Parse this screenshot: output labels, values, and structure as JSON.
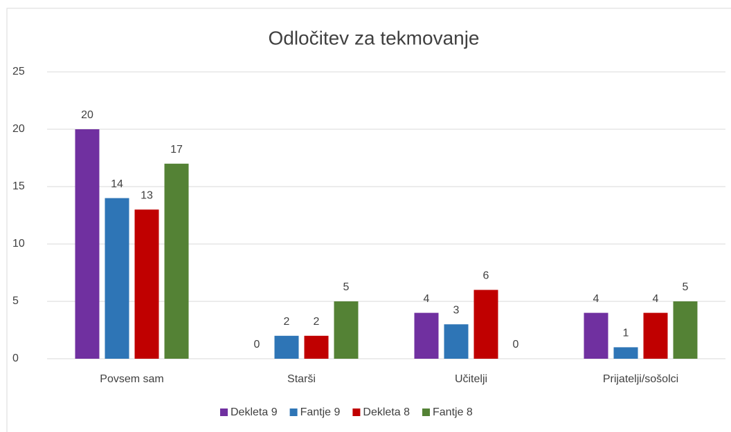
{
  "chart_data": {
    "type": "bar",
    "title": "Odločitev za tekmovanje",
    "categories": [
      "Povsem sam",
      "Starši",
      "Učitelji",
      "Prijatelji/sošolci"
    ],
    "series": [
      {
        "name": "Dekleta 9",
        "color": "#7030a0",
        "values": [
          20,
          0,
          4,
          4
        ]
      },
      {
        "name": "Fantje 9",
        "color": "#2e75b6",
        "values": [
          14,
          2,
          3,
          1
        ]
      },
      {
        "name": "Dekleta 8",
        "color": "#c00000",
        "values": [
          13,
          2,
          6,
          4
        ]
      },
      {
        "name": "Fantje 8",
        "color": "#548235",
        "values": [
          17,
          5,
          0,
          5
        ]
      }
    ],
    "ylim": [
      0,
      25
    ],
    "yticks": [
      0,
      5,
      10,
      15,
      20,
      25
    ],
    "grid": true,
    "legend": "bottom"
  }
}
